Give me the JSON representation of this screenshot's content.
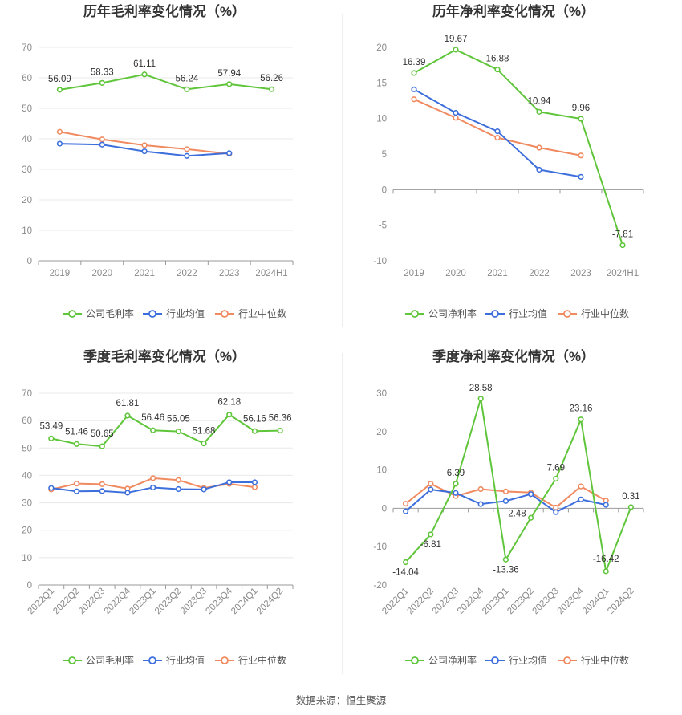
{
  "footer": {
    "source": "数据来源：恒生聚源"
  },
  "chart_data": [
    {
      "type": "line",
      "title": "历年毛利率变化情况（%）",
      "categories": [
        "2019",
        "2020",
        "2021",
        "2022",
        "2023",
        "2024H1"
      ],
      "ylim": [
        0,
        70
      ],
      "yticks": [
        0,
        10,
        20,
        30,
        40,
        50,
        60,
        70
      ],
      "grid": true,
      "legend_position": "bottom",
      "series": [
        {
          "name": "公司毛利率",
          "color": "#5fc53a",
          "labels": true,
          "values": [
            56.09,
            58.33,
            61.11,
            56.24,
            57.94,
            56.26
          ]
        },
        {
          "name": "行业均值",
          "color": "#3d6fdc",
          "labels": false,
          "values": [
            38.4,
            38.1,
            35.9,
            34.4,
            35.3,
            null
          ]
        },
        {
          "name": "行业中位数",
          "color": "#f08a60",
          "labels": false,
          "values": [
            42.3,
            39.8,
            37.9,
            36.6,
            35.1,
            null
          ]
        }
      ]
    },
    {
      "type": "line",
      "title": "历年净利率变化情况（%）",
      "categories": [
        "2019",
        "2020",
        "2021",
        "2022",
        "2023",
        "2024H1"
      ],
      "ylim": [
        -10,
        20
      ],
      "yticks": [
        -10,
        -5,
        0,
        5,
        10,
        15,
        20
      ],
      "grid": false,
      "legend_position": "bottom",
      "series": [
        {
          "name": "公司净利率",
          "color": "#5fc53a",
          "labels": true,
          "values": [
            16.39,
            19.67,
            16.88,
            10.94,
            9.96,
            -7.81
          ]
        },
        {
          "name": "行业均值",
          "color": "#3d6fdc",
          "labels": false,
          "values": [
            14.1,
            10.8,
            8.2,
            2.8,
            1.8,
            null
          ]
        },
        {
          "name": "行业中位数",
          "color": "#f08a60",
          "labels": false,
          "values": [
            12.7,
            10.1,
            7.3,
            5.9,
            4.8,
            null
          ]
        }
      ]
    },
    {
      "type": "line",
      "title": "季度毛利率变化情况（%）",
      "categories": [
        "2022Q1",
        "2022Q2",
        "2022Q3",
        "2022Q4",
        "2023Q1",
        "2023Q2",
        "2023Q3",
        "2023Q4",
        "2024Q1",
        "2024Q2"
      ],
      "ylim": [
        0,
        70
      ],
      "yticks": [
        0,
        10,
        20,
        30,
        40,
        50,
        60,
        70
      ],
      "grid": true,
      "legend_position": "bottom",
      "series": [
        {
          "name": "公司毛利率",
          "color": "#5fc53a",
          "labels": true,
          "values": [
            53.49,
            51.46,
            50.65,
            61.81,
            56.46,
            56.05,
            51.68,
            62.18,
            56.16,
            56.36
          ]
        },
        {
          "name": "行业均值",
          "color": "#3d6fdc",
          "labels": false,
          "values": [
            35.4,
            34.2,
            34.3,
            33.7,
            35.6,
            35.0,
            34.9,
            37.5,
            37.5,
            null
          ]
        },
        {
          "name": "行业中位数",
          "color": "#f08a60",
          "labels": false,
          "values": [
            34.9,
            37.0,
            36.8,
            35.2,
            39.0,
            38.3,
            35.4,
            36.9,
            35.7,
            null
          ]
        }
      ]
    },
    {
      "type": "line",
      "title": "季度净利率变化情况（%）",
      "categories": [
        "2022Q1",
        "2022Q2",
        "2022Q3",
        "2022Q4",
        "2023Q1",
        "2023Q2",
        "2023Q3",
        "2023Q4",
        "2024Q1",
        "2024Q2"
      ],
      "ylim": [
        -20,
        30
      ],
      "yticks": [
        -20,
        -10,
        0,
        10,
        20,
        30
      ],
      "grid": false,
      "legend_position": "bottom",
      "series": [
        {
          "name": "公司净利率",
          "color": "#5fc53a",
          "labels": true,
          "values": [
            -14.04,
            -6.81,
            6.39,
            28.58,
            -13.36,
            -2.48,
            7.69,
            23.16,
            -16.42,
            0.31
          ]
        },
        {
          "name": "行业均值",
          "color": "#3d6fdc",
          "labels": false,
          "values": [
            -0.8,
            4.9,
            4.0,
            1.1,
            1.9,
            3.7,
            -1.0,
            2.3,
            0.9,
            null
          ]
        },
        {
          "name": "行业中位数",
          "color": "#f08a60",
          "labels": false,
          "values": [
            1.2,
            6.4,
            3.2,
            5.0,
            4.4,
            4.1,
            0.2,
            5.7,
            2.0,
            null
          ]
        }
      ]
    }
  ]
}
